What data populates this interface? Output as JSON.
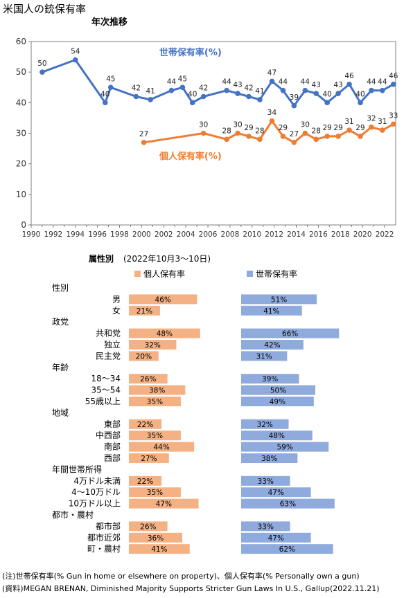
{
  "title": "米国人の銃保有率",
  "chart_data": [
    {
      "type": "line",
      "title": "年次推移",
      "xlabel": "",
      "ylabel": "",
      "xlim": [
        1990,
        2023
      ],
      "ylim": [
        0,
        60
      ],
      "xticks": [
        1990,
        1992,
        1994,
        1996,
        1998,
        2000,
        2002,
        2004,
        2006,
        2008,
        2010,
        2012,
        2014,
        2016,
        2018,
        2020,
        2022
      ],
      "yticks": [
        0,
        10,
        20,
        30,
        40,
        50,
        60
      ],
      "grid": false,
      "series": [
        {
          "name": "世帯保有率(%)",
          "color": "#4472C4",
          "points": [
            {
              "x": 1991,
              "y": 50
            },
            {
              "x": 1994,
              "y": 54
            },
            {
              "x": 1996.7,
              "y": 40
            },
            {
              "x": 1997.2,
              "y": 45
            },
            {
              "x": 1999.5,
              "y": 42
            },
            {
              "x": 2000.8,
              "y": 41
            },
            {
              "x": 2002.7,
              "y": 44
            },
            {
              "x": 2003.7,
              "y": 45
            },
            {
              "x": 2004.6,
              "y": 40
            },
            {
              "x": 2005.6,
              "y": 42
            },
            {
              "x": 2007.7,
              "y": 44
            },
            {
              "x": 2008.7,
              "y": 43
            },
            {
              "x": 2009.7,
              "y": 42
            },
            {
              "x": 2010.7,
              "y": 41
            },
            {
              "x": 2011.8,
              "y": 47
            },
            {
              "x": 2012.8,
              "y": 44
            },
            {
              "x": 2013.8,
              "y": 39
            },
            {
              "x": 2014.8,
              "y": 44
            },
            {
              "x": 2015.8,
              "y": 43
            },
            {
              "x": 2016.8,
              "y": 40
            },
            {
              "x": 2017.8,
              "y": 43
            },
            {
              "x": 2018.8,
              "y": 46
            },
            {
              "x": 2019.8,
              "y": 40
            },
            {
              "x": 2020.8,
              "y": 44
            },
            {
              "x": 2021.8,
              "y": 44
            },
            {
              "x": 2022.8,
              "y": 46
            }
          ]
        },
        {
          "name": "個人保有率(%)",
          "color": "#ED7D31",
          "points": [
            {
              "x": 2000.2,
              "y": 27
            },
            {
              "x": 2005.6,
              "y": 30
            },
            {
              "x": 2007.7,
              "y": 28
            },
            {
              "x": 2008.7,
              "y": 30
            },
            {
              "x": 2009.7,
              "y": 29
            },
            {
              "x": 2010.7,
              "y": 28
            },
            {
              "x": 2011.8,
              "y": 34
            },
            {
              "x": 2012.8,
              "y": 29
            },
            {
              "x": 2013.8,
              "y": 27
            },
            {
              "x": 2014.8,
              "y": 30
            },
            {
              "x": 2015.8,
              "y": 28
            },
            {
              "x": 2016.8,
              "y": 29
            },
            {
              "x": 2017.8,
              "y": 29
            },
            {
              "x": 2018.8,
              "y": 31
            },
            {
              "x": 2019.8,
              "y": 29
            },
            {
              "x": 2020.8,
              "y": 32
            },
            {
              "x": 2021.8,
              "y": 31
            },
            {
              "x": 2022.8,
              "y": 33
            }
          ]
        }
      ]
    },
    {
      "type": "bar",
      "orientation": "horizontal",
      "title": "属性別",
      "subtitle": "(2022年10月3〜10日)",
      "series": [
        {
          "name": "個人保有率",
          "color": "#F4B183"
        },
        {
          "name": "世帯保有率",
          "color": "#8FAADC"
        }
      ],
      "groups": [
        {
          "label": "性別",
          "rows": [
            {
              "label": "男",
              "personal": 46,
              "household": 51
            },
            {
              "label": "女",
              "personal": 21,
              "household": 41
            }
          ]
        },
        {
          "label": "政党",
          "rows": [
            {
              "label": "共和党",
              "personal": 48,
              "household": 66
            },
            {
              "label": "独立",
              "personal": 32,
              "household": 42
            },
            {
              "label": "民主党",
              "personal": 20,
              "household": 31
            }
          ]
        },
        {
          "label": "年齢",
          "rows": [
            {
              "label": "18〜34",
              "personal": 26,
              "household": 39
            },
            {
              "label": "35〜54",
              "personal": 38,
              "household": 50
            },
            {
              "label": "55歳以上",
              "personal": 35,
              "household": 49
            }
          ]
        },
        {
          "label": "地域",
          "rows": [
            {
              "label": "東部",
              "personal": 22,
              "household": 32
            },
            {
              "label": "中西部",
              "personal": 35,
              "household": 48
            },
            {
              "label": "南部",
              "personal": 44,
              "household": 59
            },
            {
              "label": "西部",
              "personal": 27,
              "household": 38
            }
          ]
        },
        {
          "label": "年間世帯所得",
          "rows": [
            {
              "label": "4万ドル未満",
              "personal": 22,
              "household": 33
            },
            {
              "label": "4〜10万ドル",
              "personal": 35,
              "household": 47
            },
            {
              "label": "10万ドル以上",
              "personal": 47,
              "household": 63
            }
          ]
        },
        {
          "label": "都市・農村",
          "rows": [
            {
              "label": "都市部",
              "personal": 26,
              "household": 33
            },
            {
              "label": "都市近郊",
              "personal": 36,
              "household": 47
            },
            {
              "label": "町・農村",
              "personal": 41,
              "household": 62
            }
          ]
        }
      ]
    }
  ],
  "notes": [
    "(注)世帯保有率(% Gun in home or elsewhere on property)、個人保有率(% Personally own a gun)",
    "(資料)MEGAN BRENAN, Diminished Majority Supports Stricter Gun Laws In U.S., Gallup(2022.11.21)"
  ]
}
